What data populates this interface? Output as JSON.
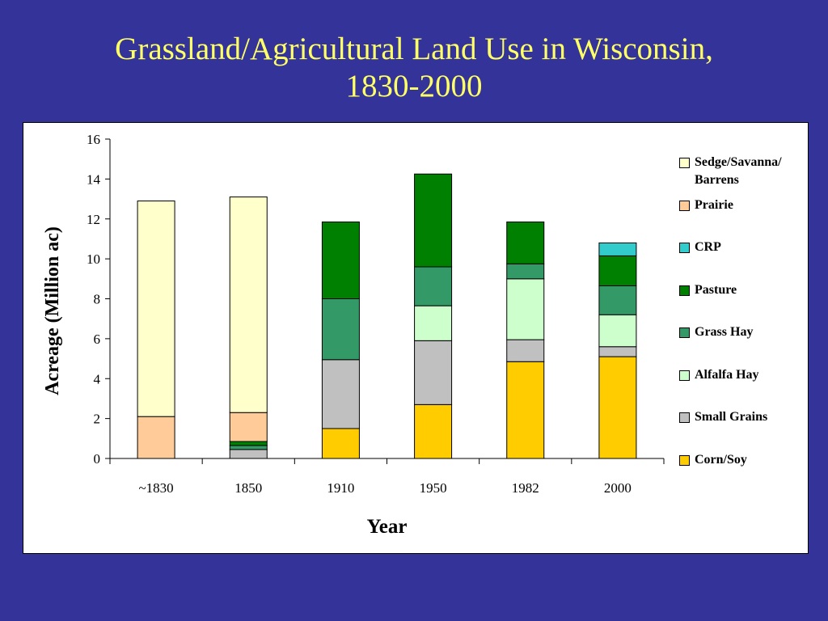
{
  "slide": {
    "title_line1": "Grassland/Agricultural Land Use in Wisconsin,",
    "title_line2": "1830-2000"
  },
  "chart_data": {
    "type": "bar",
    "stacked": true,
    "categories": [
      "~1830",
      "1850",
      "1910",
      "1950",
      "1982",
      "2000"
    ],
    "xlabel": "Year",
    "ylabel": "Acreage (Million ac)",
    "ylim": [
      0,
      16
    ],
    "yticks": [
      0,
      2,
      4,
      6,
      8,
      10,
      12,
      14,
      16
    ],
    "grid": false,
    "legend_position": "right",
    "series": [
      {
        "name": "Corn/Soy",
        "color": "#ffcc00",
        "values": [
          0,
          0,
          1.5,
          2.7,
          4.85,
          5.1
        ]
      },
      {
        "name": "Small Grains",
        "color": "#c0c0c0",
        "values": [
          0,
          0.45,
          3.45,
          3.2,
          1.1,
          0.5
        ]
      },
      {
        "name": "Alfalfa Hay",
        "color": "#ccffcc",
        "values": [
          0,
          0,
          0,
          1.75,
          3.05,
          1.6
        ]
      },
      {
        "name": "Grass Hay",
        "color": "#339966",
        "values": [
          0,
          0.2,
          3.05,
          1.95,
          0.75,
          1.45
        ]
      },
      {
        "name": "Pasture",
        "color": "#008000",
        "values": [
          0,
          0.2,
          3.85,
          4.65,
          2.1,
          1.5
        ]
      },
      {
        "name": "CRP",
        "color": "#33cccc",
        "values": [
          0,
          0,
          0,
          0,
          0,
          0.65
        ]
      },
      {
        "name": "Prairie",
        "color": "#ffcc99",
        "values": [
          2.1,
          1.45,
          0,
          0,
          0,
          0
        ]
      },
      {
        "name": "Sedge/Savanna/Barrens",
        "color": "#ffffcc",
        "values": [
          10.8,
          10.8,
          0,
          0,
          0,
          0
        ]
      }
    ],
    "legend": [
      {
        "name_lines": [
          "Sedge/Savanna/",
          "Barrens"
        ],
        "color": "#ffffcc"
      },
      {
        "name_lines": [
          "Prairie"
        ],
        "color": "#ffcc99"
      },
      {
        "name_lines": [
          "CRP"
        ],
        "color": "#33cccc"
      },
      {
        "name_lines": [
          "Pasture"
        ],
        "color": "#008000"
      },
      {
        "name_lines": [
          "Grass Hay"
        ],
        "color": "#339966"
      },
      {
        "name_lines": [
          "Alfalfa Hay"
        ],
        "color": "#ccffcc"
      },
      {
        "name_lines": [
          "Small Grains"
        ],
        "color": "#c0c0c0"
      },
      {
        "name_lines": [
          "Corn/Soy"
        ],
        "color": "#ffcc00"
      }
    ]
  }
}
